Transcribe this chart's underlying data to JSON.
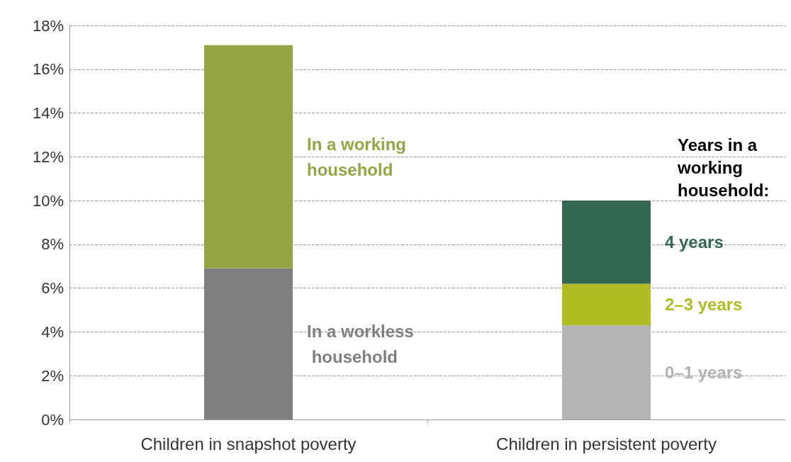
{
  "chart_data": {
    "type": "bar",
    "stacked": true,
    "categories": [
      "Children in snapshot poverty",
      "Children in persistent poverty"
    ],
    "series": [
      {
        "name": "In a workless household",
        "color": "#7f7f7f",
        "values": [
          6.9,
          null
        ]
      },
      {
        "name": "In a working household",
        "color": "#93a643",
        "values": [
          10.2,
          null
        ]
      },
      {
        "name": "0–1 years",
        "color": "#b3b3b3",
        "values": [
          null,
          4.3
        ]
      },
      {
        "name": "2–3 years",
        "color": "#afbd22",
        "values": [
          null,
          1.9
        ]
      },
      {
        "name": "4 years",
        "color": "#336951",
        "values": [
          null,
          3.8
        ]
      }
    ],
    "legend_title": "Years in a working household:",
    "ylim": [
      0,
      18
    ],
    "yticks": [
      {
        "value": 0,
        "label": "0%"
      },
      {
        "value": 2,
        "label": "2%"
      },
      {
        "value": 4,
        "label": "4%"
      },
      {
        "value": 6,
        "label": "6%"
      },
      {
        "value": 8,
        "label": "8%"
      },
      {
        "value": 10,
        "label": "10%"
      },
      {
        "value": 12,
        "label": "12%"
      },
      {
        "value": 14,
        "label": "14%"
      },
      {
        "value": 16,
        "label": "16%"
      },
      {
        "value": 18,
        "label": "18%"
      }
    ],
    "grid": "y",
    "legend": false
  }
}
